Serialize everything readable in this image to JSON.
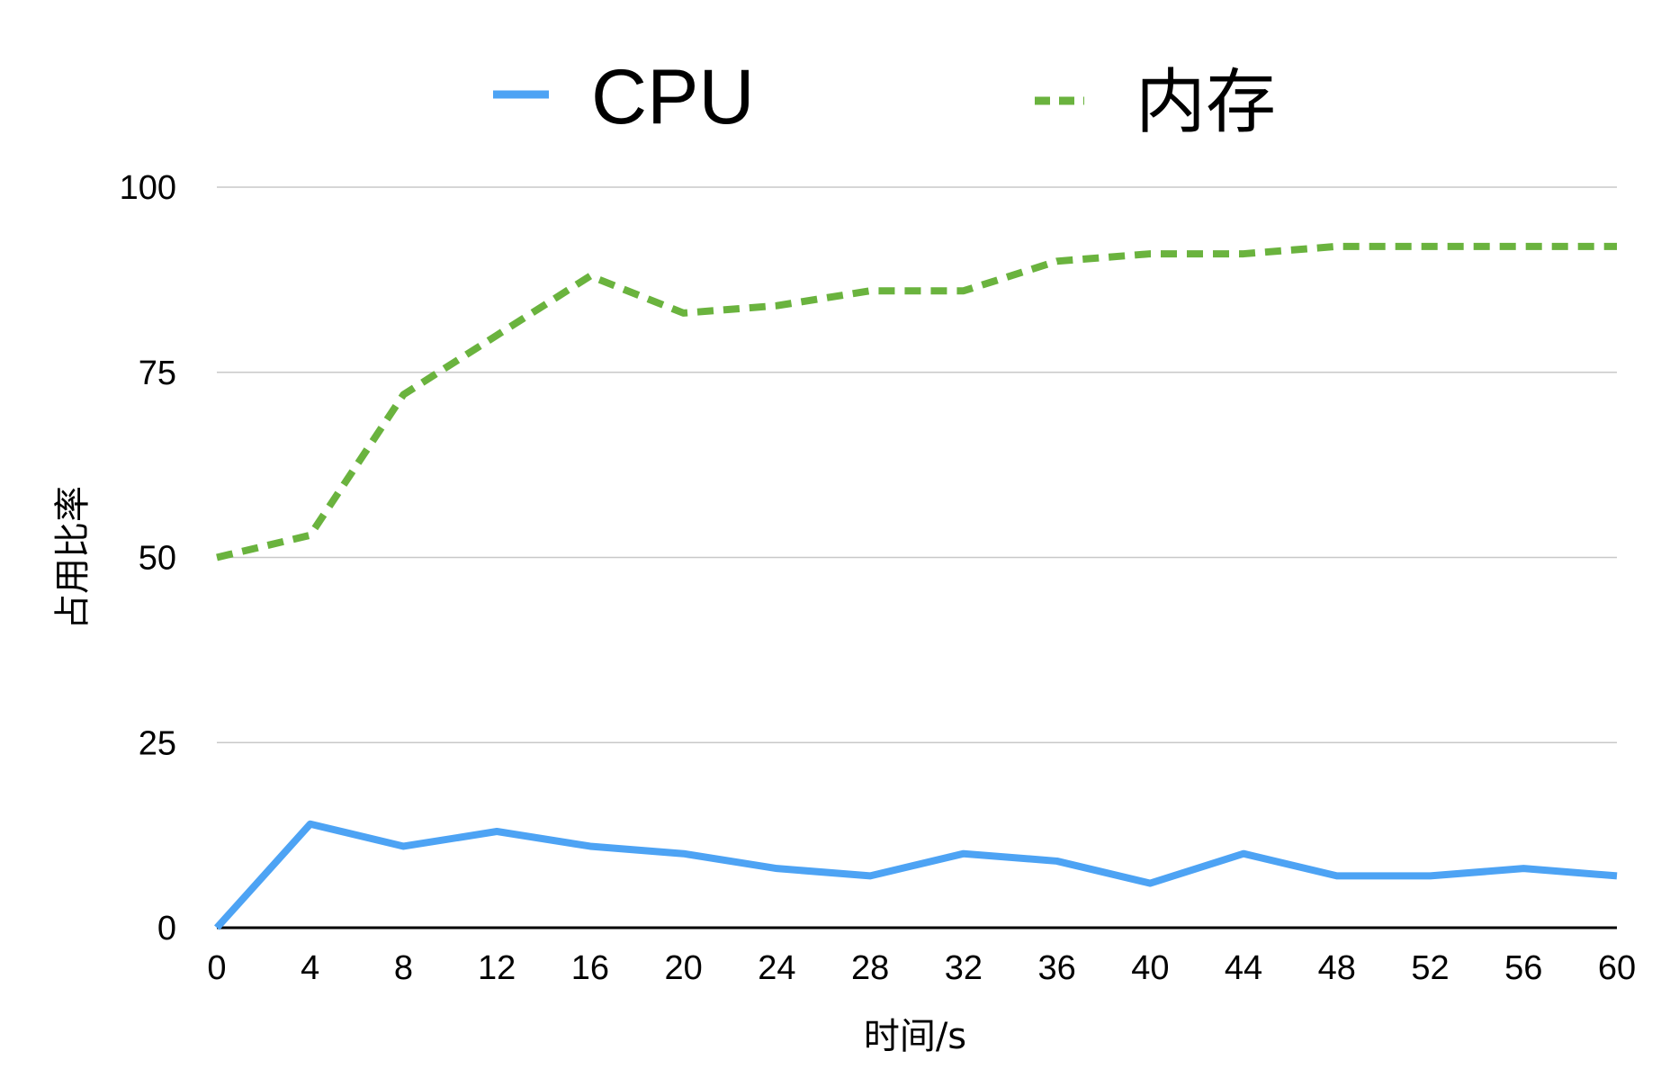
{
  "chart_data": {
    "type": "line",
    "xlabel": "时间/s",
    "ylabel": "占用比率",
    "x": [
      0,
      4,
      8,
      12,
      16,
      20,
      24,
      28,
      32,
      36,
      40,
      44,
      48,
      52,
      56,
      60
    ],
    "x_ticks": [
      "0",
      "4",
      "8",
      "12",
      "16",
      "20",
      "24",
      "28",
      "32",
      "36",
      "40",
      "44",
      "48",
      "52",
      "56",
      "60"
    ],
    "y_ticks": [
      "0",
      "25",
      "50",
      "75",
      "100"
    ],
    "ylim": [
      0,
      100
    ],
    "xlim": [
      0,
      60
    ],
    "grid": "horizontal",
    "legend_position": "top",
    "series": [
      {
        "name": "CPU",
        "color": "#4da3f4",
        "style": "solid",
        "values": [
          0,
          14,
          11,
          13,
          11,
          10,
          8,
          7,
          10,
          9,
          6,
          10,
          7,
          7,
          8,
          7
        ]
      },
      {
        "name": "内存",
        "color": "#6ab33e",
        "style": "dashed",
        "values": [
          50,
          53,
          72,
          80,
          88,
          83,
          84,
          86,
          86,
          90,
          91,
          91,
          92,
          92,
          92,
          92
        ]
      }
    ]
  }
}
